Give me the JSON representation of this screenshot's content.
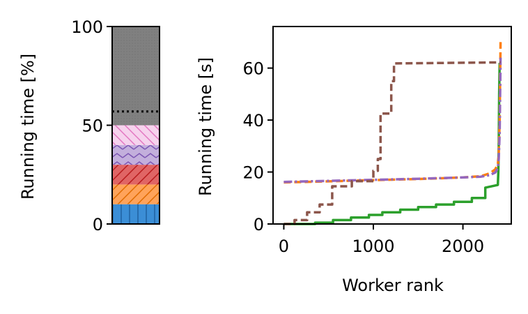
{
  "chart_data": [
    {
      "type": "bar",
      "ylabel": "Running time [%]",
      "ylim": [
        0,
        100
      ],
      "yticks": [
        "0",
        "50",
        "100"
      ],
      "stacked_segments": [
        {
          "value": 10,
          "color": "#1f77b4",
          "hatch": "vertical"
        },
        {
          "value": 10,
          "color": "#ff7f0e",
          "hatch": "diagonal"
        },
        {
          "value": 10,
          "color": "#d62728",
          "hatch": "diagonal"
        },
        {
          "value": 10,
          "color": "#9467bd",
          "hatch": "chevron"
        },
        {
          "value": 10,
          "color": "#e377c2",
          "hatch": "back-diagonal"
        },
        {
          "value": 50,
          "color": "#7f7f7f",
          "hatch": "dots"
        }
      ],
      "reference_line": {
        "value": 57,
        "style": "dotted",
        "color": "#000000"
      }
    },
    {
      "type": "line",
      "xlabel": "Worker rank",
      "ylabel": "Running time [s]",
      "xlim": [
        -120,
        2540
      ],
      "ylim": [
        0,
        76
      ],
      "xticks": [
        "0",
        "1000",
        "2000"
      ],
      "yticks": [
        "0",
        "20",
        "40",
        "60"
      ],
      "series": [
        {
          "color": "#2ca02c",
          "dash": "solid",
          "x": [
            0,
            200,
            350,
            350,
            550,
            550,
            750,
            750,
            950,
            950,
            1100,
            1100,
            1300,
            1300,
            1500,
            1500,
            1700,
            1700,
            1900,
            1900,
            2100,
            2100,
            2250,
            2250,
            2390,
            2395,
            2400,
            2405,
            2410
          ],
          "y": [
            0,
            0,
            0,
            0.5,
            0.5,
            1.5,
            1.5,
            2.5,
            2.5,
            3.5,
            3.5,
            4.5,
            4.5,
            5.5,
            5.5,
            6.5,
            6.5,
            7.5,
            7.5,
            8.5,
            8.5,
            10,
            10,
            14,
            15,
            20,
            30,
            50,
            62
          ]
        },
        {
          "color": "#ff7f0e",
          "dash": "dashed",
          "x": [
            0,
            500,
            1000,
            1500,
            2000,
            2200,
            2300,
            2360,
            2390,
            2400,
            2410,
            2420
          ],
          "y": [
            16,
            16.4,
            16.9,
            17.3,
            17.9,
            18.4,
            19.5,
            21,
            23,
            27,
            40,
            70
          ]
        },
        {
          "color": "#9467bd",
          "dash": "dashdot",
          "x": [
            0,
            500,
            1000,
            1500,
            2000,
            2200,
            2300,
            2360,
            2390,
            2400,
            2410,
            2420
          ],
          "y": [
            16.2,
            16.6,
            17,
            17.4,
            17.9,
            18.2,
            18.8,
            19.8,
            21.5,
            25,
            35,
            64
          ]
        },
        {
          "color": "#8c564b",
          "dash": "dashed",
          "x": [
            0,
            120,
            120,
            260,
            260,
            400,
            400,
            540,
            540,
            760,
            760,
            1000,
            1000,
            1050,
            1050,
            1080,
            1080,
            1200,
            1200,
            1230,
            1230,
            2420
          ],
          "y": [
            0,
            0,
            1.5,
            1.5,
            4.5,
            4.5,
            7.5,
            7.5,
            14.5,
            14.5,
            16.5,
            16.5,
            20.5,
            20.5,
            25,
            25,
            42.5,
            42.5,
            55,
            55,
            61.8,
            62.2
          ]
        }
      ]
    }
  ]
}
